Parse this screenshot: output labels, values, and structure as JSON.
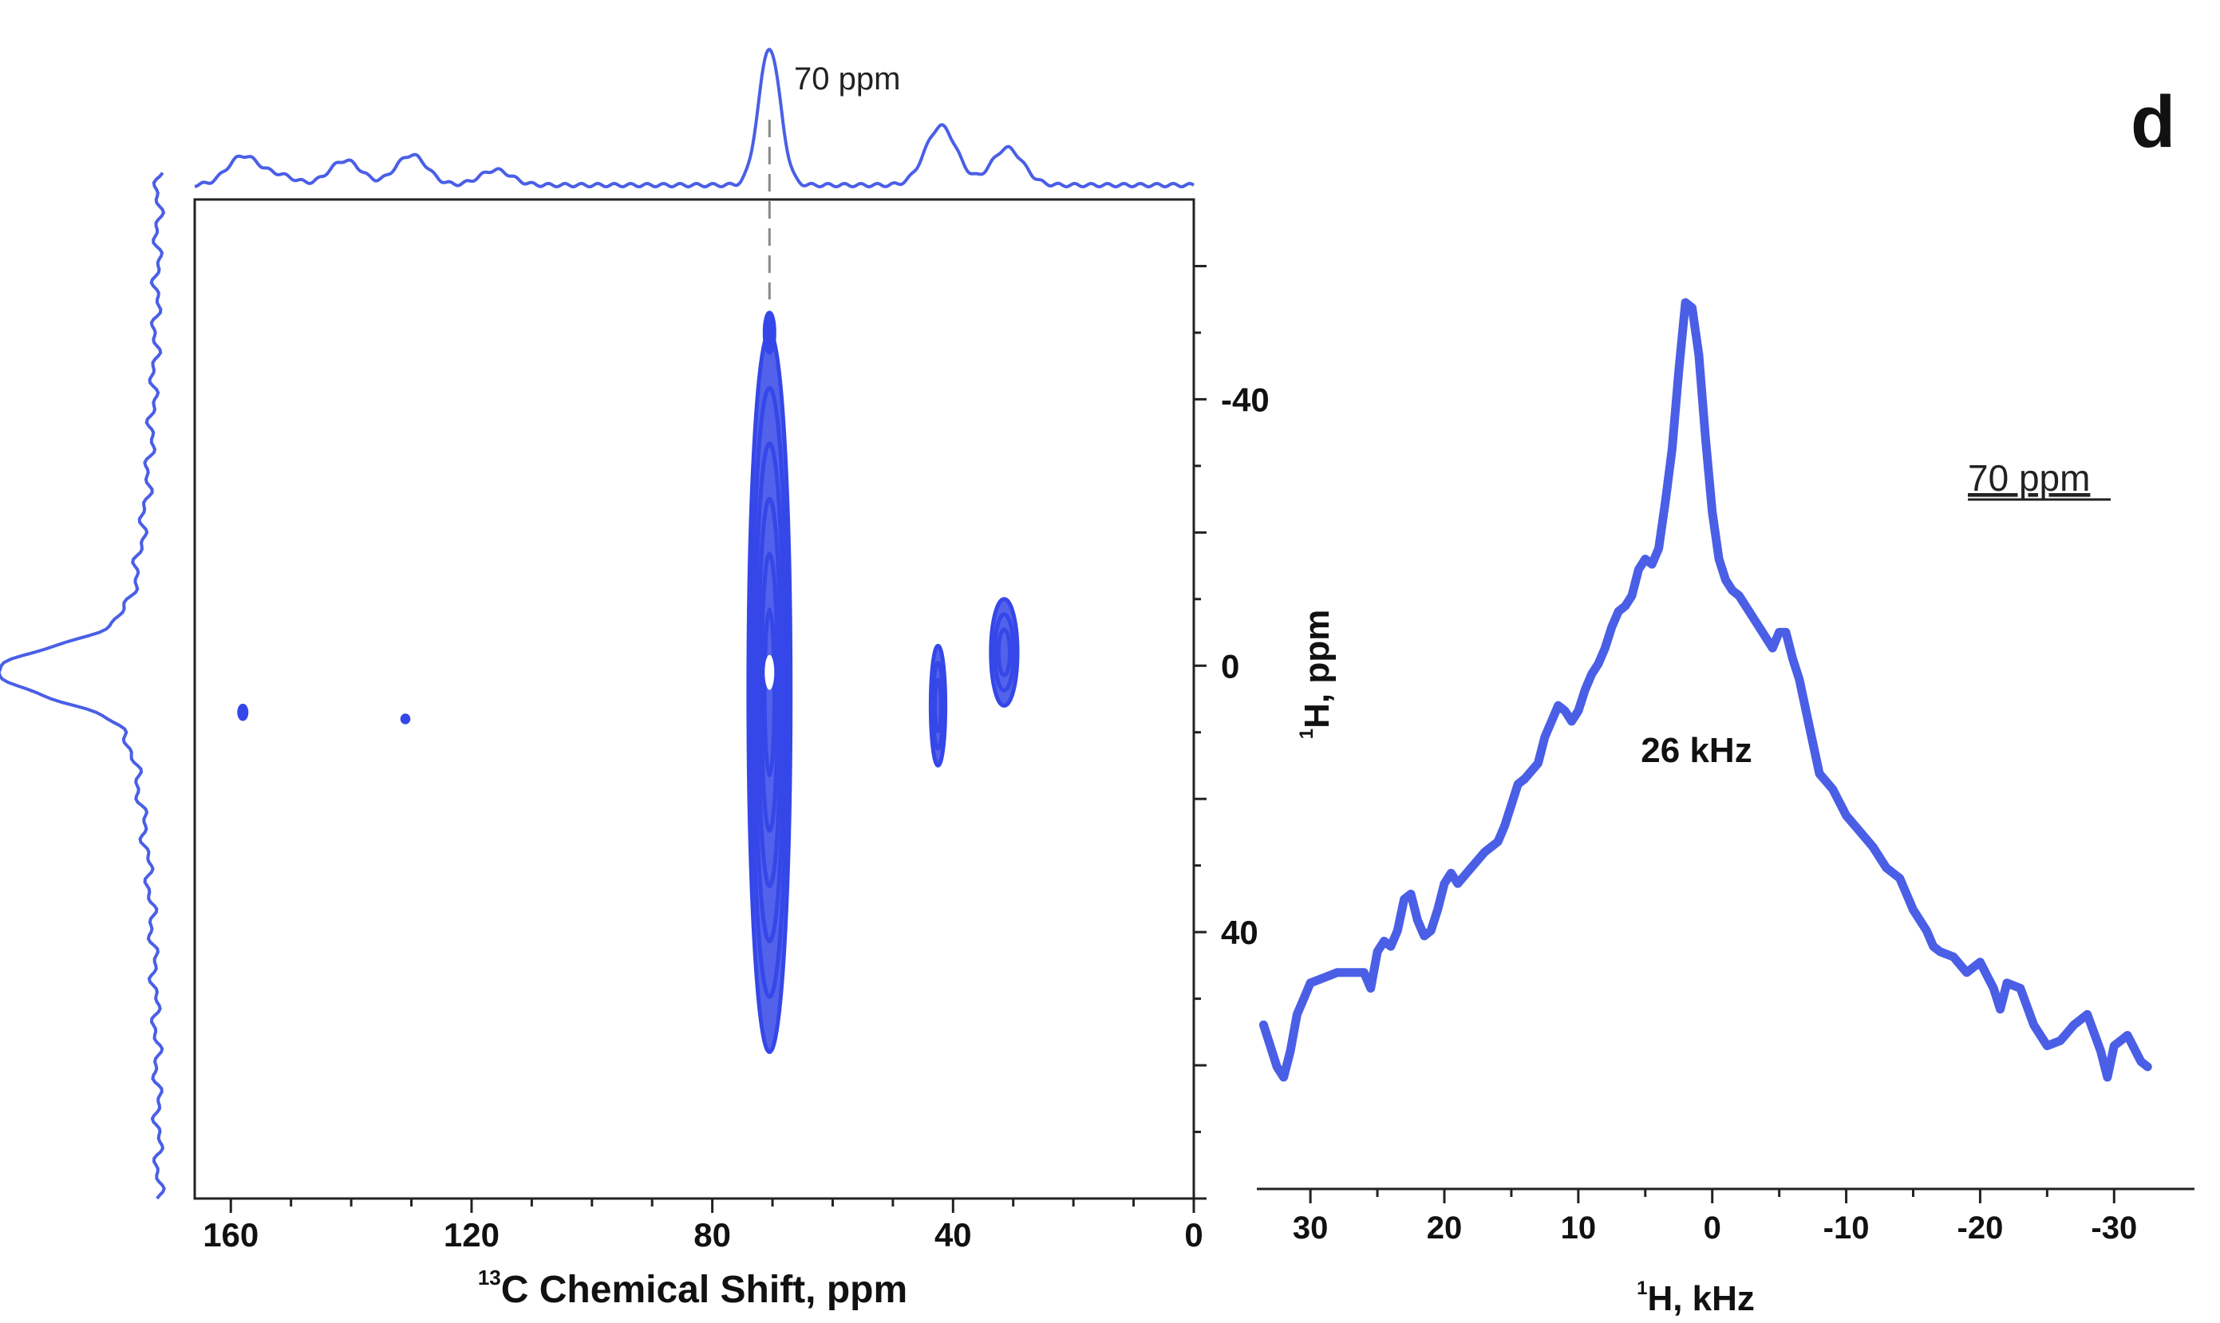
{
  "panel_letter": "d",
  "colors": {
    "trace": "#4a5fe6",
    "contour": "#3547e8",
    "axis": "#222222",
    "guide": "#888888",
    "background": "#ffffff"
  },
  "chart_data": [
    {
      "type": "heatmap",
      "subtype": "2D WISE contour spectrum",
      "title": "",
      "xlabel_sup": "13",
      "xlabel": "C Chemical Shift, ppm",
      "ylabel_sup": "1",
      "ylabel": "H, ppm",
      "xlim": [
        166,
        0
      ],
      "ylim": [
        -70,
        80
      ],
      "x_ticks": [
        {
          "value": 160,
          "label": "160"
        },
        {
          "value": 120,
          "label": "120"
        },
        {
          "value": 80,
          "label": "80"
        },
        {
          "value": 40,
          "label": "40"
        },
        {
          "value": 0,
          "label": "0"
        }
      ],
      "y_ticks": [
        {
          "value": -40,
          "label": "-40"
        },
        {
          "value": 0,
          "label": "0"
        },
        {
          "value": 40,
          "label": "40"
        }
      ],
      "top_projection_annotation": "70 ppm",
      "top_projection_peaks": [
        {
          "x": 158,
          "h": 0.21
        },
        {
          "x": 152,
          "h": 0.07
        },
        {
          "x": 141,
          "h": 0.18
        },
        {
          "x": 130,
          "h": 0.22
        },
        {
          "x": 116,
          "h": 0.11
        },
        {
          "x": 70.5,
          "h": 1.0
        },
        {
          "x": 42,
          "h": 0.43
        },
        {
          "x": 31,
          "h": 0.27
        }
      ],
      "contour_peaks": [
        {
          "x": 70.5,
          "y": 1,
          "x_width": 3.5,
          "y_min": -50,
          "y_max": 58
        },
        {
          "x": 70.5,
          "y": -50,
          "x_width": 0.8,
          "y_min": -53,
          "y_max": -47
        },
        {
          "x": 42.5,
          "y": 0,
          "x_width": 1.2,
          "y_min": -3,
          "y_max": 15
        },
        {
          "x": 31.5,
          "y": 1,
          "x_width": 2.2,
          "y_min": -10,
          "y_max": 6
        },
        {
          "x": 158,
          "y": 7,
          "x_width": 0.6,
          "y_min": 6,
          "y_max": 8
        },
        {
          "x": 131,
          "y": 8,
          "x_width": 0.5,
          "y_min": 7.5,
          "y_max": 8.5
        }
      ],
      "guide_line_at_x": 70.5
    },
    {
      "type": "line",
      "title": "",
      "xlabel_sup": "1",
      "xlabel": "H, kHz",
      "ylabel": "",
      "xlim": [
        34,
        -36
      ],
      "x_ticks": [
        {
          "value": 30,
          "label": "30"
        },
        {
          "value": 20,
          "label": "20"
        },
        {
          "value": 10,
          "label": "10"
        },
        {
          "value": 0,
          "label": "0"
        },
        {
          "value": -10,
          "label": "-10"
        },
        {
          "value": -20,
          "label": "-20"
        },
        {
          "value": -30,
          "label": "-30"
        }
      ],
      "annotation_slice": "70 ppm",
      "annotation_width": "26 kHz",
      "series": [
        {
          "name": "70 ppm slice",
          "x": [
            33.5,
            33,
            32.5,
            32,
            31.5,
            31,
            30.5,
            30,
            29,
            28,
            27,
            26,
            25.5,
            25,
            24.5,
            24,
            23.5,
            23,
            22.5,
            22,
            21.5,
            21,
            20.5,
            20,
            19.5,
            19,
            18,
            17,
            16,
            15.5,
            15,
            14.5,
            14,
            13,
            12.5,
            12,
            11.5,
            11,
            10.5,
            10,
            9.5,
            9,
            8.5,
            8,
            7.5,
            7,
            6.5,
            6,
            5.5,
            5,
            4.5,
            4,
            3.5,
            3,
            2.5,
            2,
            1.5,
            1,
            0.5,
            0,
            -0.5,
            -1,
            -1.5,
            -2,
            -2.5,
            -3,
            -3.5,
            -4,
            -4.5,
            -5,
            -5.5,
            -6,
            -6.5,
            -7,
            -7.5,
            -8,
            -9,
            -10,
            -11,
            -12,
            -12.5,
            -13,
            -14,
            -14.5,
            -15,
            -16,
            -16.5,
            -17,
            -18,
            -19,
            -20,
            -21,
            -21.5,
            -22,
            -23,
            -24,
            -25,
            -26,
            -27,
            -28,
            -29,
            -29.5,
            -30,
            -31,
            -32,
            -32.5
          ],
          "y": [
            0.1,
            0.06,
            0.02,
            0.0,
            0.05,
            0.12,
            0.15,
            0.18,
            0.19,
            0.2,
            0.2,
            0.2,
            0.17,
            0.24,
            0.26,
            0.25,
            0.28,
            0.34,
            0.35,
            0.3,
            0.27,
            0.28,
            0.32,
            0.37,
            0.39,
            0.37,
            0.4,
            0.43,
            0.45,
            0.48,
            0.52,
            0.56,
            0.57,
            0.6,
            0.65,
            0.68,
            0.71,
            0.7,
            0.68,
            0.7,
            0.74,
            0.77,
            0.79,
            0.82,
            0.86,
            0.89,
            0.9,
            0.92,
            0.97,
            0.99,
            0.98,
            1.01,
            1.1,
            1.2,
            1.35,
            1.48,
            1.47,
            1.38,
            1.22,
            1.08,
            0.99,
            0.95,
            0.93,
            0.92,
            0.9,
            0.88,
            0.86,
            0.84,
            0.82,
            0.85,
            0.85,
            0.8,
            0.76,
            0.7,
            0.64,
            0.58,
            0.55,
            0.5,
            0.47,
            0.44,
            0.42,
            0.4,
            0.38,
            0.35,
            0.32,
            0.28,
            0.25,
            0.24,
            0.23,
            0.2,
            0.22,
            0.17,
            0.13,
            0.18,
            0.17,
            0.1,
            0.06,
            0.07,
            0.1,
            0.12,
            0.05,
            0.0,
            0.06,
            0.08,
            0.03,
            0.02
          ]
        }
      ]
    }
  ]
}
